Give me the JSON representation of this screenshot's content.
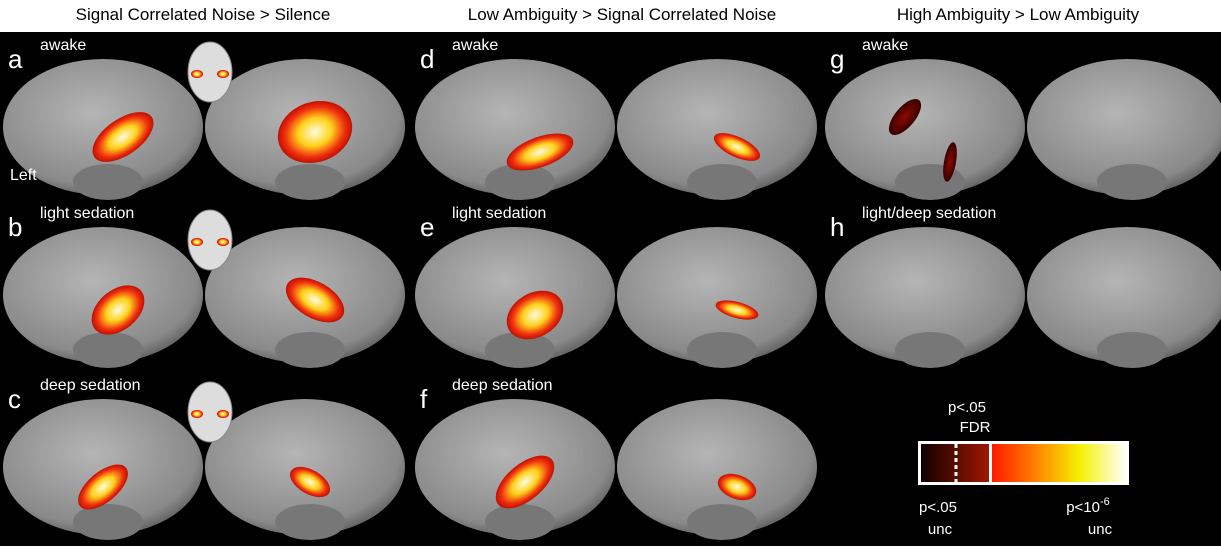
{
  "columns": [
    {
      "title": "Signal Correlated Noise > Silence"
    },
    {
      "title": "Low Ambiguity > Signal Correlated Noise"
    },
    {
      "title": "High Ambiguity > Low Ambiguity"
    }
  ],
  "panels": [
    {
      "letter": "a",
      "label": "awake"
    },
    {
      "letter": "b",
      "label": "light sedation"
    },
    {
      "letter": "c",
      "label": "deep sedation"
    },
    {
      "letter": "d",
      "label": "awake"
    },
    {
      "letter": "e",
      "label": "light sedation"
    },
    {
      "letter": "f",
      "label": "deep sedation"
    },
    {
      "letter": "g",
      "label": "awake"
    },
    {
      "letter": "h",
      "label": "light/deep sedation"
    }
  ],
  "hemisphere_label": "Left",
  "colorbar": {
    "threshold_label": {
      "line1": "p<.05",
      "line2": "FDR"
    },
    "low_label": {
      "line1": "p<.05",
      "line2": "unc"
    },
    "high_label": {
      "base": "p<10",
      "superscript": "-6",
      "line2": "unc"
    }
  }
}
